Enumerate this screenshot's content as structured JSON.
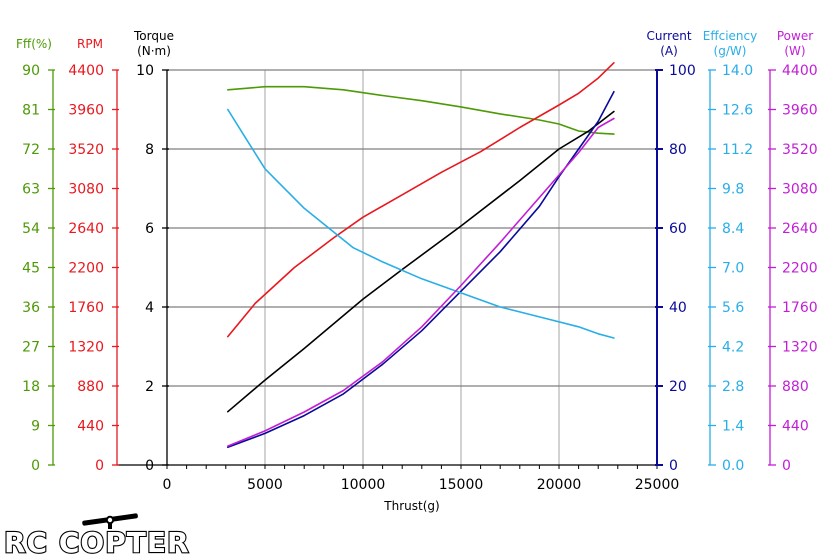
{
  "chart_data": {
    "type": "line",
    "grid": true,
    "xlabel": "Thrust(g)",
    "xlim": [
      0,
      25000
    ],
    "xticks": [
      0,
      5000,
      10000,
      15000,
      20000,
      25000
    ],
    "axes": [
      {
        "id": "eff_pct",
        "title": [
          "Fff(%)"
        ],
        "color": "#4d9a06",
        "range": [
          0,
          90
        ],
        "ticks": [
          "0",
          "9",
          "18",
          "27",
          "36",
          "45",
          "54",
          "63",
          "72",
          "81",
          "90"
        ]
      },
      {
        "id": "rpm",
        "title": [
          "RPM"
        ],
        "color": "#e8181e",
        "range": [
          0,
          4400
        ],
        "ticks": [
          "0",
          "440",
          "880",
          "1320",
          "1760",
          "2200",
          "2640",
          "3080",
          "3520",
          "3960",
          "4400"
        ]
      },
      {
        "id": "torque",
        "title": [
          "Torque",
          "(N·m)"
        ],
        "color": "#000000",
        "range": [
          0,
          10
        ],
        "ticks": [
          "0",
          "2",
          "4",
          "6",
          "8",
          "10"
        ]
      },
      {
        "id": "current",
        "title": [
          "Current",
          "(A)"
        ],
        "color": "#0a0a9a",
        "range": [
          0,
          100
        ],
        "ticks": [
          "0",
          "20",
          "40",
          "60",
          "80",
          "100"
        ]
      },
      {
        "id": "efficiency",
        "title": [
          "Effciency",
          "(g/W)"
        ],
        "color": "#29aee8",
        "range": [
          0,
          14
        ],
        "ticks": [
          "0.0",
          "1.4",
          "2.8",
          "4.2",
          "5.6",
          "7.0",
          "8.4",
          "9.8",
          "11.2",
          "12.6",
          "14.0"
        ]
      },
      {
        "id": "power",
        "title": [
          "Power",
          "(W)"
        ],
        "color": "#c21ed6",
        "range": [
          0,
          4400
        ],
        "ticks": [
          "0",
          "440",
          "880",
          "1320",
          "1760",
          "2200",
          "2640",
          "3080",
          "3520",
          "3960",
          "4400"
        ]
      }
    ],
    "series": [
      {
        "axis": "eff_pct",
        "color": "#4d9a06",
        "points": [
          [
            3100,
            85.5
          ],
          [
            5000,
            86.2
          ],
          [
            7000,
            86.2
          ],
          [
            9000,
            85.5
          ],
          [
            11000,
            84.2
          ],
          [
            13000,
            83
          ],
          [
            15000,
            81.6
          ],
          [
            17000,
            80
          ],
          [
            19000,
            78.6
          ],
          [
            20000,
            77.7
          ],
          [
            21000,
            76.1
          ],
          [
            22000,
            75.6
          ],
          [
            22800,
            75.4
          ]
        ]
      },
      {
        "axis": "rpm",
        "color": "#e8181e",
        "points": [
          [
            3100,
            1430
          ],
          [
            4500,
            1800
          ],
          [
            6500,
            2200
          ],
          [
            8500,
            2530
          ],
          [
            10000,
            2760
          ],
          [
            12000,
            3010
          ],
          [
            14000,
            3260
          ],
          [
            16000,
            3490
          ],
          [
            18000,
            3760
          ],
          [
            20000,
            4010
          ],
          [
            21000,
            4140
          ],
          [
            22000,
            4310
          ],
          [
            22800,
            4480
          ]
        ]
      },
      {
        "axis": "torque",
        "color": "#000000",
        "points": [
          [
            3100,
            1.35
          ],
          [
            5000,
            2.15
          ],
          [
            7000,
            2.95
          ],
          [
            10000,
            4.2
          ],
          [
            12000,
            4.95
          ],
          [
            15000,
            6.05
          ],
          [
            18000,
            7.2
          ],
          [
            20000,
            8.0
          ],
          [
            21500,
            8.45
          ],
          [
            22800,
            8.95
          ]
        ]
      },
      {
        "axis": "current",
        "color": "#0a0a9a",
        "points": [
          [
            3100,
            4.5
          ],
          [
            5000,
            8
          ],
          [
            7000,
            12.5
          ],
          [
            9000,
            18
          ],
          [
            11000,
            25.5
          ],
          [
            13000,
            34
          ],
          [
            15000,
            44
          ],
          [
            17000,
            54
          ],
          [
            19000,
            65.5
          ],
          [
            20000,
            73
          ],
          [
            21000,
            80
          ],
          [
            22000,
            87
          ],
          [
            22800,
            94.5
          ]
        ]
      },
      {
        "axis": "efficiency",
        "color": "#29aee8",
        "points": [
          [
            3100,
            12.6
          ],
          [
            4000,
            11.6
          ],
          [
            5000,
            10.5
          ],
          [
            7000,
            9.1
          ],
          [
            9500,
            7.7
          ],
          [
            11000,
            7.2
          ],
          [
            13000,
            6.6
          ],
          [
            15000,
            6.1
          ],
          [
            17000,
            5.6
          ],
          [
            19000,
            5.25
          ],
          [
            21000,
            4.9
          ],
          [
            22000,
            4.65
          ],
          [
            22800,
            4.5
          ]
        ]
      },
      {
        "axis": "power",
        "color": "#c21ed6",
        "points": [
          [
            3100,
            210
          ],
          [
            5000,
            380
          ],
          [
            7000,
            590
          ],
          [
            9000,
            830
          ],
          [
            11000,
            1150
          ],
          [
            13000,
            1540
          ],
          [
            15000,
            2000
          ],
          [
            17000,
            2480
          ],
          [
            19000,
            2980
          ],
          [
            20000,
            3230
          ],
          [
            21000,
            3480
          ],
          [
            22000,
            3760
          ],
          [
            22800,
            3860
          ]
        ]
      }
    ]
  },
  "logo_text": "RC COPTER"
}
